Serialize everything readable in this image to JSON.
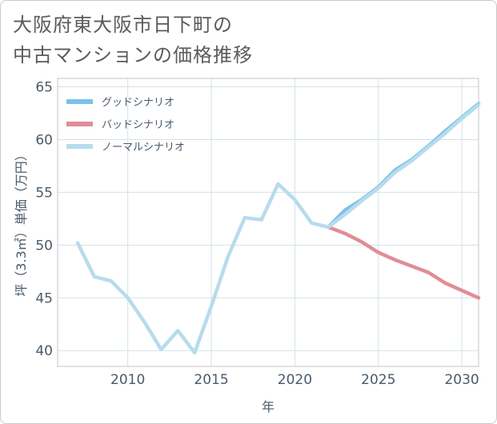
{
  "title_lines": [
    "大阪府東大阪市日下町の",
    "中古マンションの価格推移"
  ],
  "chart_data": {
    "type": "line",
    "title": "大阪府東大阪市日下町の中古マンションの価格推移",
    "xlabel": "年",
    "ylabel": "坪（3.3㎡）単価（万円）",
    "xlim": [
      2005.8,
      2031
    ],
    "ylim": [
      38.5,
      65.8
    ],
    "xticks": [
      2010,
      2015,
      2020,
      2025,
      2030
    ],
    "yticks": [
      40,
      45,
      50,
      55,
      60,
      65
    ],
    "grid": true,
    "legend_position": "top-left",
    "series": [
      {
        "name": "グッドシナリオ",
        "color": "#7cc0ec",
        "x": [
          2022,
          2023,
          2024,
          2025,
          2026,
          2027,
          2028,
          2029,
          2030,
          2031
        ],
        "y": [
          51.7,
          53.3,
          54.3,
          55.5,
          57.1,
          58.1,
          59.4,
          60.8,
          62.1,
          63.4
        ]
      },
      {
        "name": "バッドシナリオ",
        "color": "#e08d96",
        "x": [
          2022,
          2023,
          2024,
          2025,
          2026,
          2027,
          2028,
          2029,
          2030,
          2031
        ],
        "y": [
          51.7,
          51.1,
          50.3,
          49.3,
          48.6,
          48.0,
          47.4,
          46.4,
          45.7,
          45.0
        ]
      },
      {
        "name": "ノーマルシナリオ",
        "color": "#b7dcec",
        "x": [
          2007,
          2008,
          2009,
          2010,
          2011,
          2012,
          2013,
          2014,
          2015,
          2016,
          2017,
          2018,
          2019,
          2020,
          2021,
          2022,
          2023,
          2024,
          2025,
          2026,
          2027,
          2028,
          2029,
          2030,
          2031
        ],
        "y": [
          50.2,
          47.0,
          46.6,
          45.0,
          42.7,
          40.1,
          41.9,
          39.8,
          44.2,
          48.9,
          52.6,
          52.4,
          55.8,
          54.3,
          52.1,
          51.7,
          52.9,
          54.2,
          55.4,
          56.9,
          58.0,
          59.3,
          60.6,
          62.0,
          63.3
        ]
      }
    ]
  }
}
